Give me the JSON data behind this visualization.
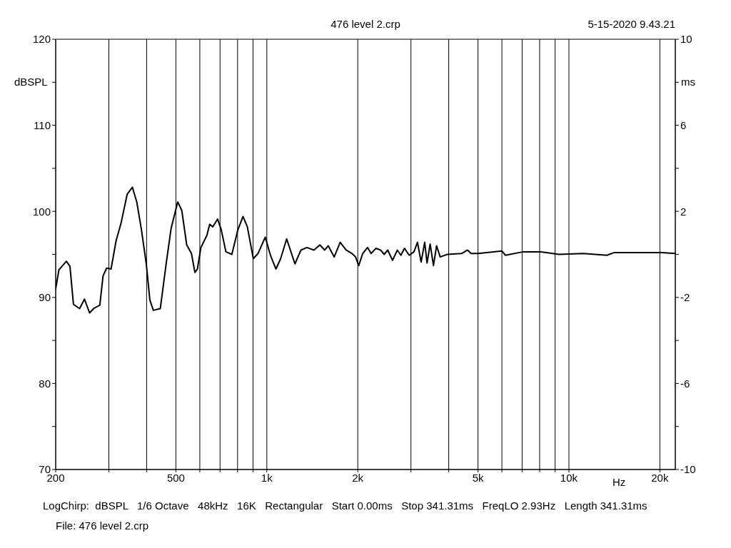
{
  "chart_data": {
    "type": "line",
    "title": "476 level 2.crp",
    "xlabel": "Hz",
    "ylabel": "dBSPL",
    "y2label": "ms",
    "log": "x",
    "grid": true,
    "marker": "none",
    "line_style": "solid",
    "xlim": [
      200,
      22500
    ],
    "ylim": [
      70,
      120
    ],
    "y2lim": [
      -10,
      10
    ],
    "xticks": [
      200,
      {
        "value": 300,
        "label": null
      },
      {
        "value": 400,
        "label": null
      },
      500,
      {
        "value": 600,
        "label": null
      },
      {
        "value": 700,
        "label": null
      },
      {
        "value": 800,
        "label": null
      },
      {
        "value": 900,
        "label": null
      },
      {
        "value": 1000,
        "label": "1k"
      },
      {
        "value": 2000,
        "label": "2k"
      },
      {
        "value": 3000,
        "label": null
      },
      {
        "value": 4000,
        "label": null
      },
      {
        "value": 5000,
        "label": "5k"
      },
      {
        "value": 6000,
        "label": null
      },
      {
        "value": 7000,
        "label": null
      },
      {
        "value": 8000,
        "label": null
      },
      {
        "value": 9000,
        "label": null
      },
      {
        "value": 10000,
        "label": "10k"
      },
      {
        "value": 20000,
        "label": "20k"
      }
    ],
    "yticks": [
      70,
      {
        "value": 75,
        "label": null
      },
      80,
      {
        "value": 85,
        "label": null
      },
      90,
      {
        "value": 95,
        "label": null
      },
      100,
      {
        "value": 105,
        "label": null
      },
      110,
      {
        "value": 115,
        "label": null
      },
      120
    ],
    "y2ticks": [
      -10,
      {
        "value": -8,
        "label": null
      },
      -6,
      {
        "value": -4,
        "label": null
      },
      -2,
      {
        "value": 0,
        "label": null
      },
      2,
      {
        "value": 4,
        "label": null
      },
      6,
      {
        "value": 8,
        "label": null
      },
      10
    ],
    "x": [
      200,
      205,
      217,
      223,
      229,
      240,
      249,
      259,
      267,
      280,
      287,
      295,
      305,
      317,
      329,
      345,
      359,
      371,
      384,
      399,
      410,
      421,
      444,
      465,
      482,
      507,
      523,
      543,
      563,
      578,
      589,
      605,
      633,
      647,
      662,
      687,
      706,
      732,
      766,
      801,
      834,
      862,
      902,
      935,
      988,
      1024,
      1033,
      1072,
      1111,
      1163,
      1239,
      1297,
      1357,
      1432,
      1498,
      1554,
      1597,
      1671,
      1749,
      1830,
      1914,
      1967,
      2015,
      2077,
      2154,
      2214,
      2296,
      2380,
      2446,
      2513,
      2607,
      2704,
      2778,
      2855,
      2960,
      3069,
      3153,
      3241,
      3331,
      3391,
      3473,
      3561,
      3647,
      3748,
      3957,
      4413,
      4617,
      4744,
      5009,
      5997,
      6160,
      7058,
      8042,
      9265,
      11150,
      13350,
      14090,
      20290,
      22500
    ],
    "series": [
      {
        "color": "#000000",
        "values": [
          91.0,
          93.2,
          94.2,
          93.6,
          89.2,
          88.7,
          89.8,
          88.2,
          88.7,
          89.1,
          92.5,
          93.4,
          93.3,
          96.6,
          98.6,
          102.0,
          102.8,
          101.1,
          98.0,
          93.9,
          89.7,
          88.5,
          88.7,
          94.1,
          98.0,
          101.1,
          100.1,
          96.1,
          95.1,
          92.9,
          93.3,
          95.8,
          97.2,
          98.5,
          98.2,
          99.1,
          97.9,
          95.3,
          95.0,
          97.8,
          99.4,
          98.2,
          94.5,
          95.1,
          97.0,
          95.1,
          94.7,
          93.3,
          94.5,
          96.8,
          93.9,
          95.5,
          95.8,
          95.5,
          96.1,
          95.5,
          96.0,
          94.7,
          96.4,
          95.5,
          95.1,
          94.7,
          93.7,
          95.1,
          95.8,
          95.1,
          95.7,
          95.5,
          95.0,
          95.5,
          94.3,
          95.5,
          94.9,
          95.7,
          94.9,
          95.3,
          96.4,
          94.1,
          96.4,
          94.0,
          96.2,
          93.7,
          96.0,
          94.7,
          95.0,
          95.1,
          95.5,
          95.1,
          95.1,
          95.4,
          94.9,
          95.3,
          95.3,
          95.0,
          95.1,
          94.9,
          95.2,
          95.2,
          95.1
        ]
      }
    ],
    "annotations": [
      "5-15-2020 9.43.21",
      "LogChirp:  dBSPL   1/6 Octave   48kHz   16K   Rectangular   Start 0.00ms   Stop 341.31ms   FreqLO 2.93Hz   Length 341.31ms",
      "File: 476 level 2.crp"
    ]
  }
}
